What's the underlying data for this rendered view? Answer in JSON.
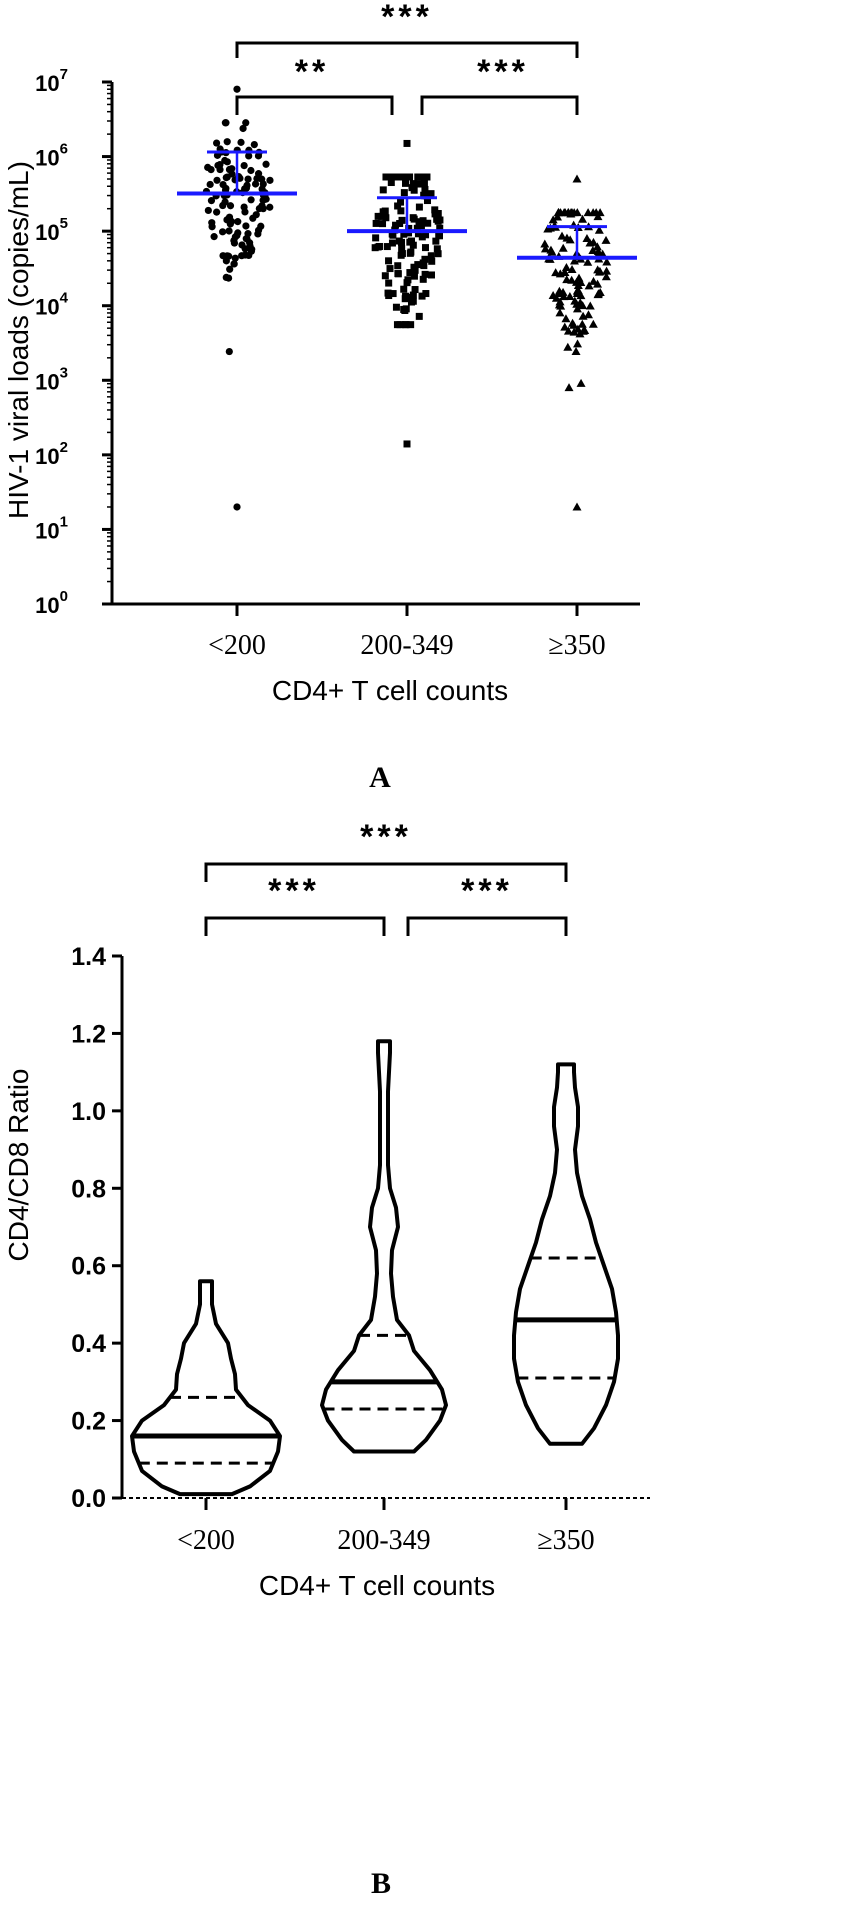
{
  "chart_data": [
    {
      "panel_label": "A",
      "type": "scatter",
      "ylabel": "HIV-1 viral loads (copies/mL)",
      "xlabel": "CD4+ T cell counts",
      "categories": [
        "<200",
        "200-349",
        "≥350"
      ],
      "y_scale": "log",
      "ylim": [
        1,
        10000000
      ],
      "y_ticks": [
        {
          "base": "10",
          "exp": "0"
        },
        {
          "base": "10",
          "exp": "1"
        },
        {
          "base": "10",
          "exp": "2"
        },
        {
          "base": "10",
          "exp": "3"
        },
        {
          "base": "10",
          "exp": "4"
        },
        {
          "base": "10",
          "exp": "5"
        },
        {
          "base": "10",
          "exp": "6"
        },
        {
          "base": "10",
          "exp": "7"
        }
      ],
      "groups": [
        {
          "category": "<200",
          "marker": "circle",
          "median": 320000,
          "upper_bar": 1150000,
          "approx_n": 120,
          "min": 20,
          "max": 8000000
        },
        {
          "category": "200-349",
          "marker": "square",
          "median": 100000,
          "upper_bar": 280000,
          "approx_n": 130,
          "min": 140,
          "max": 1500000
        },
        {
          "category": "≥350",
          "marker": "triangle",
          "median": 44000,
          "upper_bar": 115000,
          "approx_n": 120,
          "min": 20,
          "max": 500000
        }
      ],
      "annotations": [
        {
          "from": "<200",
          "to": "≥350",
          "text": "***"
        },
        {
          "from": "<200",
          "to": "200-349",
          "text": "**"
        },
        {
          "from": "200-349",
          "to": "≥350",
          "text": "***"
        }
      ]
    },
    {
      "panel_label": "B",
      "type": "violin",
      "ylabel": "CD4/CD8 Ratio",
      "xlabel": "CD4+ T cell counts",
      "categories": [
        "<200",
        "200-349",
        "≥350"
      ],
      "ylim": [
        0,
        1.4
      ],
      "y_ticks": [
        "0.0",
        "0.2",
        "0.4",
        "0.6",
        "0.8",
        "1.0",
        "1.2",
        "1.4"
      ],
      "groups": [
        {
          "category": "<200",
          "min": 0.01,
          "q1": 0.09,
          "median": 0.16,
          "q3": 0.26,
          "max": 0.56
        },
        {
          "category": "200-349",
          "min": 0.12,
          "q1": 0.23,
          "median": 0.3,
          "q3": 0.42,
          "max": 1.18
        },
        {
          "category": "≥350",
          "min": 0.14,
          "q1": 0.31,
          "median": 0.46,
          "q3": 0.62,
          "max": 1.12
        }
      ],
      "annotations": [
        {
          "from": "<200",
          "to": "≥350",
          "text": "***"
        },
        {
          "from": "<200",
          "to": "200-349",
          "text": "***"
        },
        {
          "from": "200-349",
          "to": "≥350",
          "text": "***"
        }
      ]
    }
  ],
  "colors": {
    "ink": "#000000",
    "median_line": "#1a1aff"
  }
}
